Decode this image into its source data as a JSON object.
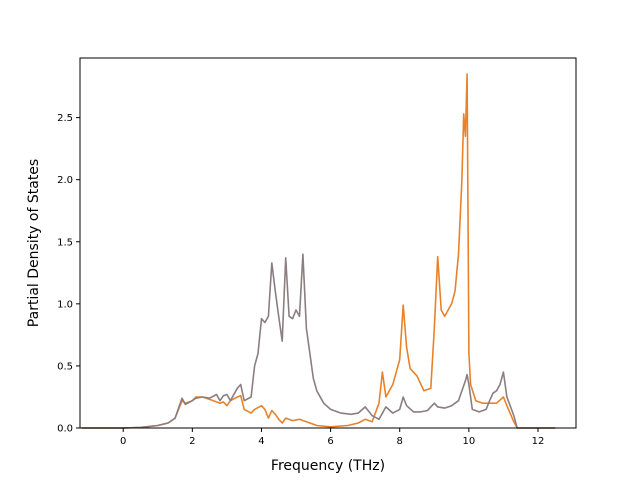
{
  "chart_data": {
    "type": "line",
    "title": "",
    "xlabel": "Frequency (THz)",
    "ylabel": "Partial Density of States",
    "xlim": [
      -1.25,
      13.1
    ],
    "ylim": [
      0.0,
      2.98
    ],
    "xticks": [
      0,
      2,
      4,
      6,
      8,
      10,
      12
    ],
    "yticks": [
      0.0,
      0.5,
      1.0,
      1.5,
      2.0,
      2.5
    ],
    "xtick_labels": [
      "0",
      "2",
      "4",
      "6",
      "8",
      "10",
      "12"
    ],
    "ytick_labels": [
      "0.0",
      "0.5",
      "1.0",
      "1.5",
      "2.0",
      "2.5"
    ],
    "grid": false,
    "series": [
      {
        "color": "#e8822a",
        "points": [
          [
            -1.2,
            0.0
          ],
          [
            0.0,
            0.0
          ],
          [
            0.5,
            0.005
          ],
          [
            1.0,
            0.02
          ],
          [
            1.3,
            0.04
          ],
          [
            1.5,
            0.08
          ],
          [
            1.7,
            0.22
          ],
          [
            1.8,
            0.2
          ],
          [
            2.0,
            0.22
          ],
          [
            2.1,
            0.25
          ],
          [
            2.3,
            0.25
          ],
          [
            2.5,
            0.23
          ],
          [
            2.7,
            0.21
          ],
          [
            2.8,
            0.2
          ],
          [
            2.9,
            0.21
          ],
          [
            3.0,
            0.18
          ],
          [
            3.1,
            0.22
          ],
          [
            3.3,
            0.25
          ],
          [
            3.4,
            0.26
          ],
          [
            3.5,
            0.15
          ],
          [
            3.7,
            0.12
          ],
          [
            3.8,
            0.15
          ],
          [
            4.0,
            0.18
          ],
          [
            4.1,
            0.15
          ],
          [
            4.2,
            0.08
          ],
          [
            4.3,
            0.14
          ],
          [
            4.4,
            0.11
          ],
          [
            4.5,
            0.07
          ],
          [
            4.6,
            0.04
          ],
          [
            4.7,
            0.08
          ],
          [
            4.9,
            0.06
          ],
          [
            5.1,
            0.07
          ],
          [
            5.3,
            0.05
          ],
          [
            5.6,
            0.02
          ],
          [
            6.0,
            0.01
          ],
          [
            6.5,
            0.02
          ],
          [
            6.8,
            0.04
          ],
          [
            7.0,
            0.07
          ],
          [
            7.2,
            0.05
          ],
          [
            7.4,
            0.2
          ],
          [
            7.5,
            0.45
          ],
          [
            7.6,
            0.25
          ],
          [
            7.8,
            0.35
          ],
          [
            8.0,
            0.55
          ],
          [
            8.1,
            0.99
          ],
          [
            8.2,
            0.65
          ],
          [
            8.3,
            0.48
          ],
          [
            8.5,
            0.42
          ],
          [
            8.7,
            0.3
          ],
          [
            8.9,
            0.32
          ],
          [
            9.0,
            0.8
          ],
          [
            9.1,
            1.38
          ],
          [
            9.2,
            0.95
          ],
          [
            9.3,
            0.9
          ],
          [
            9.5,
            1.0
          ],
          [
            9.6,
            1.1
          ],
          [
            9.7,
            1.4
          ],
          [
            9.8,
            2.0
          ],
          [
            9.85,
            2.53
          ],
          [
            9.9,
            2.35
          ],
          [
            9.95,
            2.85
          ],
          [
            10.0,
            0.6
          ],
          [
            10.05,
            0.35
          ],
          [
            10.2,
            0.22
          ],
          [
            10.4,
            0.2
          ],
          [
            10.6,
            0.2
          ],
          [
            10.8,
            0.2
          ],
          [
            11.0,
            0.25
          ],
          [
            11.1,
            0.18
          ],
          [
            11.3,
            0.05
          ],
          [
            11.4,
            0.0
          ],
          [
            12.5,
            0.0
          ]
        ]
      },
      {
        "color": "#8c7e80",
        "points": [
          [
            -1.2,
            0.0
          ],
          [
            0.0,
            0.0
          ],
          [
            0.5,
            0.005
          ],
          [
            1.0,
            0.02
          ],
          [
            1.3,
            0.04
          ],
          [
            1.5,
            0.08
          ],
          [
            1.7,
            0.24
          ],
          [
            1.8,
            0.19
          ],
          [
            2.0,
            0.22
          ],
          [
            2.1,
            0.24
          ],
          [
            2.3,
            0.25
          ],
          [
            2.5,
            0.24
          ],
          [
            2.7,
            0.27
          ],
          [
            2.8,
            0.22
          ],
          [
            2.9,
            0.26
          ],
          [
            3.0,
            0.27
          ],
          [
            3.1,
            0.22
          ],
          [
            3.3,
            0.32
          ],
          [
            3.4,
            0.35
          ],
          [
            3.5,
            0.22
          ],
          [
            3.7,
            0.25
          ],
          [
            3.8,
            0.5
          ],
          [
            3.9,
            0.6
          ],
          [
            4.0,
            0.88
          ],
          [
            4.1,
            0.85
          ],
          [
            4.2,
            0.9
          ],
          [
            4.3,
            1.33
          ],
          [
            4.4,
            1.1
          ],
          [
            4.5,
            0.9
          ],
          [
            4.6,
            0.7
          ],
          [
            4.7,
            1.37
          ],
          [
            4.8,
            0.9
          ],
          [
            4.9,
            0.88
          ],
          [
            5.0,
            0.95
          ],
          [
            5.1,
            0.9
          ],
          [
            5.2,
            1.4
          ],
          [
            5.3,
            0.8
          ],
          [
            5.4,
            0.6
          ],
          [
            5.5,
            0.4
          ],
          [
            5.6,
            0.3
          ],
          [
            5.8,
            0.2
          ],
          [
            6.0,
            0.15
          ],
          [
            6.3,
            0.12
          ],
          [
            6.6,
            0.11
          ],
          [
            6.8,
            0.12
          ],
          [
            7.0,
            0.17
          ],
          [
            7.2,
            0.1
          ],
          [
            7.4,
            0.07
          ],
          [
            7.6,
            0.17
          ],
          [
            7.8,
            0.12
          ],
          [
            8.0,
            0.15
          ],
          [
            8.1,
            0.25
          ],
          [
            8.2,
            0.18
          ],
          [
            8.4,
            0.13
          ],
          [
            8.6,
            0.13
          ],
          [
            8.8,
            0.14
          ],
          [
            9.0,
            0.2
          ],
          [
            9.1,
            0.17
          ],
          [
            9.3,
            0.16
          ],
          [
            9.5,
            0.18
          ],
          [
            9.7,
            0.22
          ],
          [
            9.8,
            0.3
          ],
          [
            9.9,
            0.38
          ],
          [
            9.95,
            0.43
          ],
          [
            10.0,
            0.35
          ],
          [
            10.1,
            0.15
          ],
          [
            10.3,
            0.13
          ],
          [
            10.5,
            0.15
          ],
          [
            10.6,
            0.22
          ],
          [
            10.7,
            0.28
          ],
          [
            10.8,
            0.3
          ],
          [
            10.9,
            0.35
          ],
          [
            11.0,
            0.45
          ],
          [
            11.1,
            0.25
          ],
          [
            11.3,
            0.1
          ],
          [
            11.4,
            0.0
          ],
          [
            12.5,
            0.0
          ]
        ]
      }
    ]
  }
}
